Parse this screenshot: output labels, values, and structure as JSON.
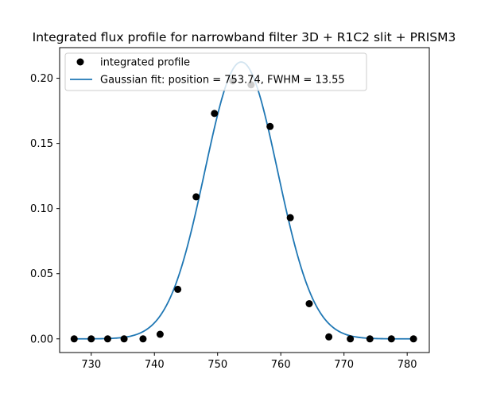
{
  "chart_data": {
    "type": "scatter",
    "title": "Integrated flux profile for narrowband filter 3D + R1C2 slit + PRISM3",
    "xlabel": "",
    "ylabel": "",
    "xlim": [
      725.0,
      783.5
    ],
    "ylim": [
      -0.0105,
      0.2235
    ],
    "xticks": [
      730,
      740,
      750,
      760,
      770,
      780
    ],
    "yticks": [
      0.0,
      0.05,
      0.1,
      0.15,
      0.2
    ],
    "xtick_labels": [
      "730",
      "740",
      "750",
      "760",
      "770",
      "780"
    ],
    "ytick_labels": [
      "0.00",
      "0.05",
      "0.10",
      "0.15",
      "0.20"
    ],
    "grid": false,
    "legend_position": "upper-left",
    "colors": {
      "points": "#000000",
      "fit": "#1f77b4",
      "axes": "#000000"
    },
    "series": [
      {
        "name": "integrated profile",
        "kind": "scatter",
        "x": [
          727.3,
          730.0,
          732.6,
          735.2,
          738.2,
          740.9,
          743.7,
          746.6,
          749.5,
          752.4,
          755.3,
          758.3,
          761.5,
          764.5,
          767.6,
          771.0,
          774.1,
          777.5,
          781.0
        ],
        "y": [
          0.0,
          0.0,
          0.0,
          0.0,
          0.0,
          0.0035,
          0.038,
          0.109,
          0.173,
          0.198,
          0.195,
          0.163,
          0.093,
          0.027,
          0.0015,
          0.0,
          0.0,
          0.0,
          0.0
        ]
      },
      {
        "name": "Gaussian fit: position = 753.74, FWHM = 13.55",
        "kind": "line",
        "model": "gaussian",
        "amplitude": 0.2125,
        "center": 753.74,
        "fwhm": 13.55,
        "x_range": [
          727.3,
          781.0
        ]
      }
    ]
  }
}
